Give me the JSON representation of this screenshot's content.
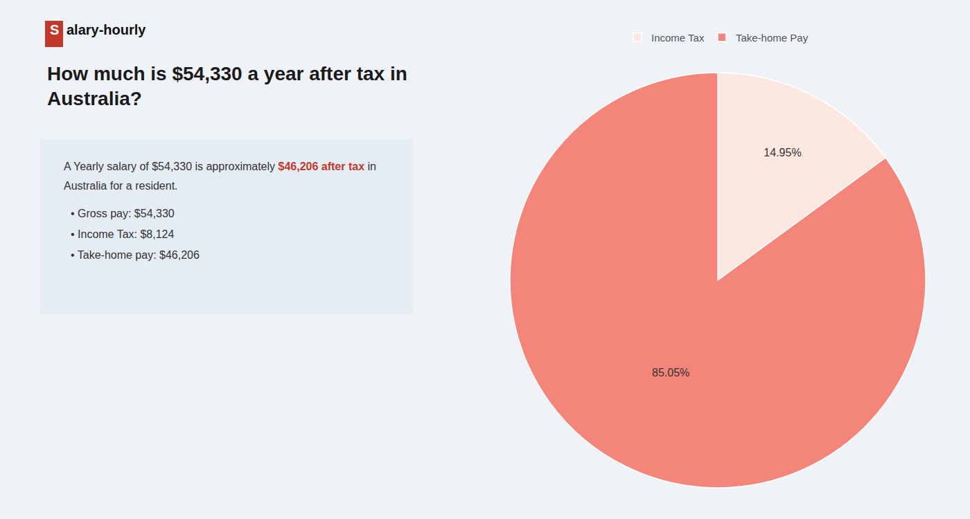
{
  "chart_data": {
    "type": "pie",
    "title": "How much is $54,330 a year after tax in\nAustralia?",
    "categories": [
      "Income Tax",
      "Take-home Pay"
    ],
    "values": [
      14.95,
      85.05
    ],
    "value_labels": [
      "14.95%",
      "85.05%"
    ],
    "colors": [
      "#fce8e0",
      "#f4857a"
    ],
    "data_labels": true,
    "legend": "top",
    "annotations": [
      "S",
      "alary-hourly",
      "A Yearly salary of $54,330 is approximately ",
      "$46,206 after tax",
      " in",
      "Australia for a resident.",
      "• Gross pay: $54,330",
      "• Income Tax: $8,124",
      "• Take-home pay: $46,206"
    ]
  }
}
